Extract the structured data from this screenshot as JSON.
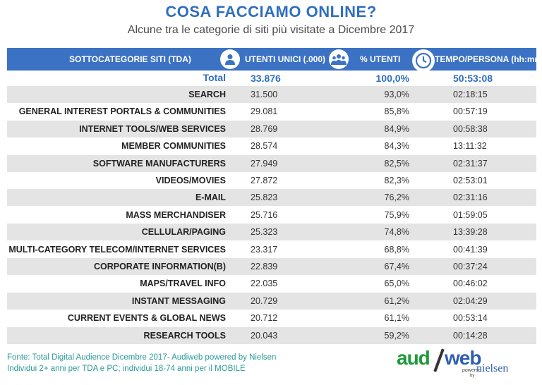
{
  "title": "COSA FACCIAMO ONLINE?",
  "subtitle": "Alcune tra le categorie di siti più visitate a Dicembre 2017",
  "header": {
    "col_name": "SOTTOCATEGORIE SITI  (TDA)",
    "col_utenti": "UTENTI UNICI (.000)",
    "col_perc": "% UTENTI",
    "col_tempo": "TEMPO/PERSONA (hh:mm)",
    "icons": [
      "person-icon",
      "group-icon",
      "clock-icon"
    ]
  },
  "total": {
    "label": "Total",
    "utenti": "33.876",
    "perc": "100,0%",
    "tempo": "50:53:08"
  },
  "rows": [
    {
      "name": "SEARCH",
      "utenti": "31.500",
      "perc": "93,0%",
      "tempo": "02:18:15"
    },
    {
      "name": "GENERAL INTEREST PORTALS & COMMUNITIES",
      "utenti": "29.081",
      "perc": "85,8%",
      "tempo": "00:57:19"
    },
    {
      "name": "INTERNET TOOLS/WEB SERVICES",
      "utenti": "28.769",
      "perc": "84,9%",
      "tempo": "00:58:38"
    },
    {
      "name": "MEMBER COMMUNITIES",
      "utenti": "28.574",
      "perc": "84,3%",
      "tempo": "13:11:32"
    },
    {
      "name": "SOFTWARE MANUFACTURERS",
      "utenti": "27.949",
      "perc": "82,5%",
      "tempo": "02:31:37"
    },
    {
      "name": "VIDEOS/MOVIES",
      "utenti": "27.872",
      "perc": "82,3%",
      "tempo": "02:53:01"
    },
    {
      "name": "E-MAIL",
      "utenti": "25.823",
      "perc": "76,2%",
      "tempo": "02:31:16"
    },
    {
      "name": "MASS MERCHANDISER",
      "utenti": "25.716",
      "perc": "75,9%",
      "tempo": "01:59:05"
    },
    {
      "name": "CELLULAR/PAGING",
      "utenti": "25.323",
      "perc": "74,8%",
      "tempo": "13:39:28"
    },
    {
      "name": "MULTI-CATEGORY TELECOM/INTERNET SERVICES",
      "utenti": "23.317",
      "perc": "68,8%",
      "tempo": "00:41:39"
    },
    {
      "name": "CORPORATE INFORMATION(B)",
      "utenti": "22.839",
      "perc": "67,4%",
      "tempo": "00:37:24"
    },
    {
      "name": "MAPS/TRAVEL INFO",
      "utenti": "22.035",
      "perc": "65,0%",
      "tempo": "00:46:02"
    },
    {
      "name": "INSTANT MESSAGING",
      "utenti": "20.729",
      "perc": "61,2%",
      "tempo": "02:04:29"
    },
    {
      "name": "CURRENT EVENTS & GLOBAL NEWS",
      "utenti": "20.712",
      "perc": "61,1%",
      "tempo": "00:53:14"
    },
    {
      "name": "RESEARCH TOOLS",
      "utenti": "20.043",
      "perc": "59,2%",
      "tempo": "00:14:28"
    }
  ],
  "footer": {
    "line1": "Fonte: Total Digital Audience Dicembre 2017- Audiweb powered by Nielsen",
    "line2": "Individui 2+ anni per TDA e PC; individui 18-74 anni per il MOBILE"
  },
  "logo": {
    "aud": "aud",
    "web": "web",
    "powered": "powered",
    "by": "by",
    "nielsen": "nielsen"
  },
  "colors": {
    "header_bg": "#3c72c4",
    "title": "#2f6fc0",
    "row_shade": "#e4e4e4",
    "footer": "#2a9a9a",
    "logo_green": "#1f9a3a",
    "logo_blue": "#2f5fb0"
  }
}
